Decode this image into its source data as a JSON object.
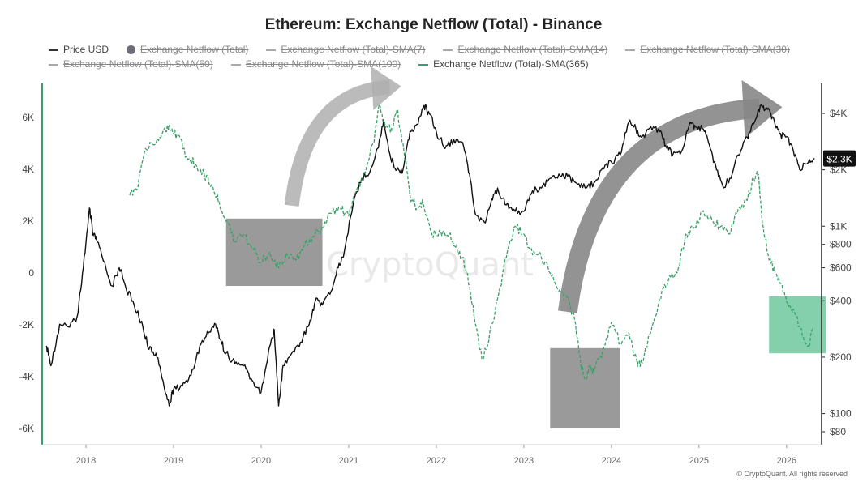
{
  "chart_data": {
    "type": "line",
    "title": "Ethereum: Exchange Netflow (Total) - Binance",
    "legend": [
      {
        "label": "Price USD",
        "style": "line",
        "enabled": true
      },
      {
        "label": "Exchange Netflow (Total)",
        "style": "dot",
        "enabled": false
      },
      {
        "label": "Exchange Netflow (Total)-SMA(7)",
        "style": "dash",
        "enabled": false
      },
      {
        "label": "Exchange Netflow (Total)-SMA(14)",
        "style": "dash",
        "enabled": false
      },
      {
        "label": "Exchange Netflow (Total)-SMA(30)",
        "style": "dash",
        "enabled": false
      },
      {
        "label": "Exchange Netflow (Total)-SMA(50)",
        "style": "dash",
        "enabled": false
      },
      {
        "label": "Exchange Netflow (Total)-SMA(100)",
        "style": "dash",
        "enabled": false
      },
      {
        "label": "Exchange Netflow (Total)-SMA(365)",
        "style": "green",
        "enabled": true
      }
    ],
    "x_ticks": [
      "2018",
      "2019",
      "2020",
      "2021",
      "2022",
      "2023",
      "2024",
      "2025",
      "2026"
    ],
    "xlim": [
      2017.5,
      2026.4
    ],
    "left_axis": {
      "ticks": [
        "6K",
        "4K",
        "2K",
        "0",
        "-2K",
        "-4K",
        "-6K"
      ],
      "tick_values": [
        6000,
        4000,
        2000,
        0,
        -2000,
        -4000,
        -6000
      ],
      "ylim": [
        -6000,
        6000
      ]
    },
    "right_axis": {
      "scale": "log",
      "ticks": [
        "$4K",
        "$2K",
        "$1K",
        "$800",
        "$600",
        "$400",
        "$200",
        "$100",
        "$80"
      ],
      "tick_values": [
        4000,
        2000,
        1000,
        800,
        600,
        400,
        200,
        100,
        80
      ],
      "ylim": [
        80,
        4000
      ]
    },
    "current_price_label": "$2.3K",
    "current_price_value": 2300,
    "series": [
      {
        "name": "Price USD",
        "axis": "right",
        "color": "#111111",
        "x": [
          2017.55,
          2017.6,
          2017.7,
          2017.8,
          2017.9,
          2017.97,
          2018.04,
          2018.08,
          2018.12,
          2018.2,
          2018.3,
          2018.38,
          2018.45,
          2018.55,
          2018.65,
          2018.72,
          2018.8,
          2018.88,
          2018.95,
          2019.0,
          2019.1,
          2019.2,
          2019.3,
          2019.4,
          2019.48,
          2019.53,
          2019.6,
          2019.7,
          2019.8,
          2019.9,
          2020.0,
          2020.1,
          2020.15,
          2020.2,
          2020.25,
          2020.35,
          2020.45,
          2020.55,
          2020.62,
          2020.7,
          2020.8,
          2020.88,
          2020.95,
          2021.05,
          2021.15,
          2021.25,
          2021.33,
          2021.4,
          2021.48,
          2021.55,
          2021.62,
          2021.7,
          2021.78,
          2021.86,
          2021.92,
          2022.0,
          2022.1,
          2022.2,
          2022.3,
          2022.38,
          2022.45,
          2022.55,
          2022.62,
          2022.7,
          2022.8,
          2022.9,
          2023.0,
          2023.1,
          2023.2,
          2023.3,
          2023.4,
          2023.5,
          2023.6,
          2023.7,
          2023.8,
          2023.9,
          2024.0,
          2024.1,
          2024.2,
          2024.28,
          2024.35,
          2024.45,
          2024.55,
          2024.62,
          2024.7,
          2024.8,
          2024.9,
          2024.96,
          2025.05,
          2025.12,
          2025.2,
          2025.28,
          2025.35,
          2025.45,
          2025.55,
          2025.62,
          2025.7,
          2025.78,
          2025.85,
          2025.92,
          2026.0,
          2026.08,
          2026.15,
          2026.25,
          2026.32
        ],
        "values": [
          230,
          180,
          300,
          290,
          330,
          600,
          1250,
          900,
          850,
          650,
          480,
          600,
          480,
          380,
          290,
          220,
          210,
          150,
          110,
          135,
          140,
          160,
          230,
          270,
          300,
          250,
          210,
          185,
          180,
          150,
          130,
          230,
          280,
          110,
          180,
          210,
          240,
          300,
          400,
          380,
          450,
          600,
          730,
          1300,
          1800,
          2000,
          2600,
          3700,
          2300,
          2000,
          2000,
          3200,
          3500,
          4400,
          4000,
          3200,
          2600,
          2900,
          2800,
          1900,
          1150,
          1050,
          1300,
          1600,
          1300,
          1200,
          1200,
          1550,
          1600,
          1800,
          1900,
          1850,
          1700,
          1600,
          1700,
          2050,
          2200,
          2400,
          3600,
          3300,
          3000,
          3400,
          3200,
          2700,
          2400,
          2500,
          3600,
          3400,
          3300,
          2700,
          2000,
          1600,
          1800,
          2400,
          3000,
          3500,
          4400,
          4200,
          3800,
          3100,
          3000,
          2500,
          2000,
          2200,
          2300
        ]
      },
      {
        "name": "Exchange Netflow (Total)-SMA(365)",
        "axis": "left",
        "color": "#3aa06a",
        "x": [
          2018.5,
          2018.58,
          2018.68,
          2018.8,
          2018.9,
          2018.97,
          2019.05,
          2019.15,
          2019.25,
          2019.35,
          2019.45,
          2019.52,
          2019.6,
          2019.7,
          2019.8,
          2019.9,
          2020.0,
          2020.1,
          2020.2,
          2020.3,
          2020.4,
          2020.5,
          2020.6,
          2020.7,
          2020.8,
          2020.9,
          2021.0,
          2021.1,
          2021.2,
          2021.28,
          2021.35,
          2021.42,
          2021.5,
          2021.55,
          2021.62,
          2021.7,
          2021.78,
          2021.85,
          2021.95,
          2022.05,
          2022.15,
          2022.22,
          2022.3,
          2022.38,
          2022.45,
          2022.52,
          2022.6,
          2022.7,
          2022.8,
          2022.9,
          2023.0,
          2023.1,
          2023.2,
          2023.3,
          2023.4,
          2023.5,
          2023.58,
          2023.65,
          2023.7,
          2023.75,
          2023.8,
          2023.9,
          2024.0,
          2024.1,
          2024.2,
          2024.3,
          2024.35,
          2024.45,
          2024.55,
          2024.65,
          2024.75,
          2024.85,
          2024.95,
          2025.05,
          2025.15,
          2025.25,
          2025.35,
          2025.45,
          2025.55,
          2025.62,
          2025.68,
          2025.72,
          2025.8,
          2025.88,
          2025.95,
          2026.02,
          2026.1,
          2026.18,
          2026.25,
          2026.3
        ],
        "values": [
          3000,
          3200,
          4800,
          5000,
          5600,
          5500,
          5300,
          4500,
          4200,
          3800,
          3300,
          2800,
          2000,
          1200,
          1500,
          1000,
          400,
          800,
          200,
          700,
          500,
          1100,
          1400,
          1800,
          2300,
          2500,
          2200,
          3300,
          4000,
          5000,
          6500,
          5600,
          5500,
          6300,
          5000,
          3000,
          2500,
          2700,
          1500,
          1600,
          1500,
          1000,
          600,
          -500,
          -2000,
          -3300,
          -2600,
          -1000,
          600,
          1800,
          1500,
          700,
          600,
          0,
          -700,
          -1000,
          -1800,
          -3500,
          -4100,
          -3600,
          -3800,
          -3000,
          -1900,
          -2700,
          -2300,
          -3600,
          -3500,
          -2300,
          -1000,
          -300,
          0,
          1500,
          1800,
          2400,
          2000,
          1800,
          1500,
          2500,
          2800,
          3600,
          3800,
          2000,
          500,
          0,
          -500,
          -1300,
          -1600,
          -2400,
          -2800,
          -2200
        ]
      }
    ],
    "annotations": [
      {
        "type": "highlight-box",
        "color": "gray",
        "x": [
          2019.6,
          2020.7
        ],
        "y": [
          -500,
          2100
        ]
      },
      {
        "type": "highlight-box",
        "color": "gray",
        "x": [
          2023.3,
          2024.1
        ],
        "y": [
          -6000,
          -2900
        ]
      },
      {
        "type": "highlight-box",
        "color": "green",
        "x": [
          2025.8,
          2026.45
        ],
        "y": [
          -3100,
          -900
        ]
      },
      {
        "type": "arrow",
        "color": "gray",
        "x": [
          2020.35,
          2021.6
        ],
        "y": [
          2600,
          7200
        ]
      },
      {
        "type": "arrow",
        "color": "gray",
        "x": [
          2023.5,
          2025.95
        ],
        "y": [
          -1500,
          6400
        ]
      }
    ],
    "watermark": "CryptoQuant"
  },
  "footer": {
    "copyright": "© CryptoQuant. All rights reserved"
  }
}
